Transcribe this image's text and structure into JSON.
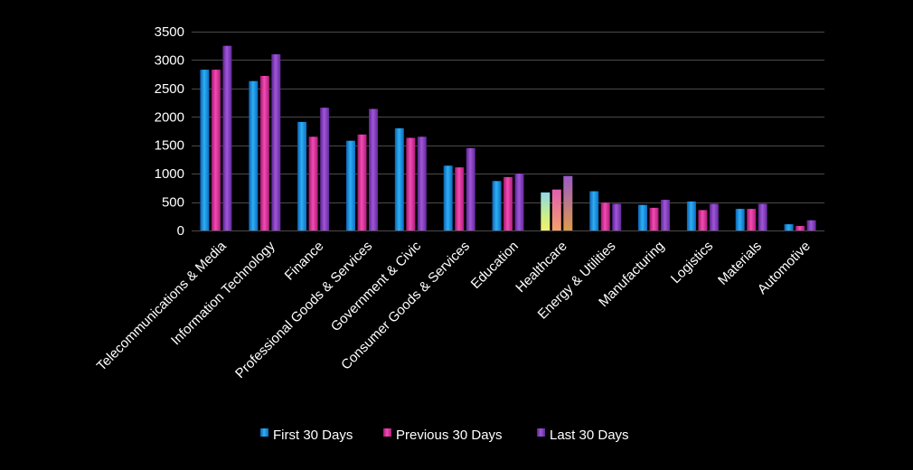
{
  "chart_data": {
    "type": "bar",
    "title": "",
    "xlabel": "",
    "ylabel": "",
    "ylim": [
      0,
      3500
    ],
    "yticks": [
      0,
      500,
      1000,
      1500,
      2000,
      2500,
      3000,
      3500
    ],
    "grid": true,
    "legend_position": "bottom",
    "categories": [
      "Telecommunications & Media",
      "Information Technology",
      "Finance",
      "Professional Goods & Services",
      "Government & Civic",
      "Consumer Goods &  Services",
      "Education",
      "Healthcare",
      "Energy & Utilities",
      "Manufacturing",
      "Logistics",
      "Materials",
      "Automotive"
    ],
    "series": [
      {
        "name": "First 30 Days",
        "color": "#1e9be8",
        "values": [
          2830,
          2630,
          1910,
          1580,
          1800,
          1140,
          870,
          670,
          690,
          450,
          510,
          380,
          110
        ]
      },
      {
        "name": "Previous 30 Days",
        "color": "#e23aa0",
        "values": [
          2830,
          2720,
          1650,
          1690,
          1630,
          1110,
          940,
          720,
          490,
          400,
          360,
          380,
          80
        ]
      },
      {
        "name": "Last 30 Days",
        "color": "#8a3fc4",
        "values": [
          3250,
          3100,
          2160,
          2140,
          1650,
          1450,
          1000,
          960,
          470,
          540,
          470,
          470,
          180
        ]
      }
    ]
  }
}
